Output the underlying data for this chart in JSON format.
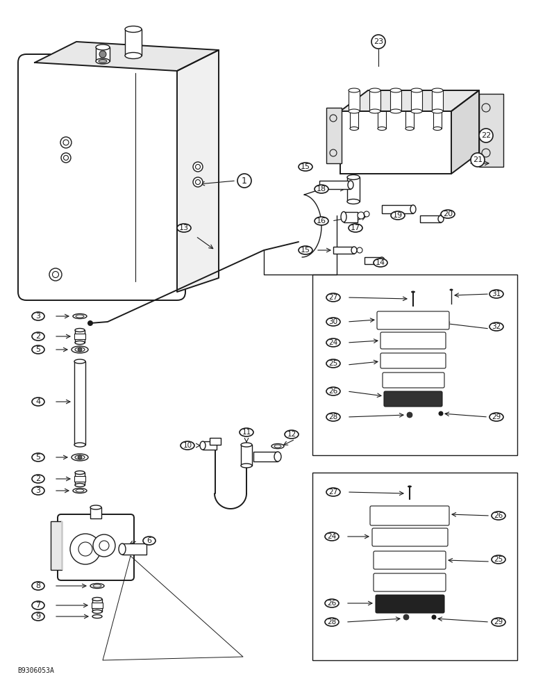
{
  "bg_color": "#ffffff",
  "line_color": "#1a1a1a",
  "figure_size": [
    7.72,
    10.0
  ],
  "dpi": 100,
  "watermark": "B9306053A"
}
